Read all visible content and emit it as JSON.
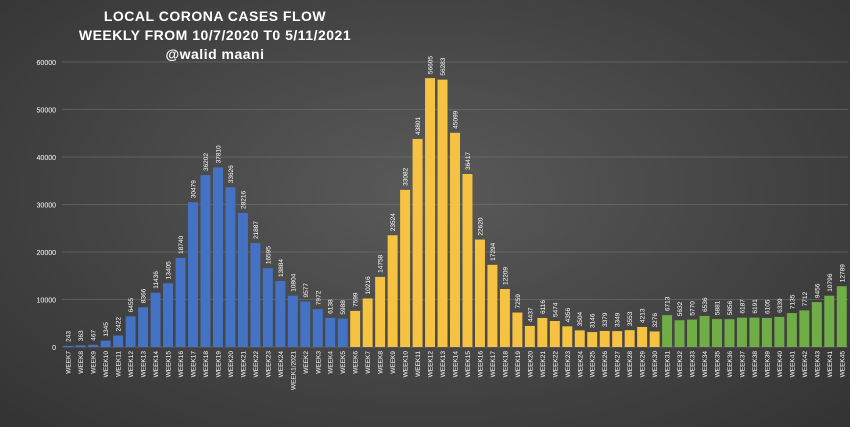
{
  "chart_data": {
    "type": "bar",
    "title": [
      "LOCAL CORONA CASES FLOW",
      "WEEKLY FROM 10/7/2020 T0 5/11/2021",
      "@walid maani"
    ],
    "xlabel": "",
    "ylabel": "",
    "ylim": [
      0,
      60000
    ],
    "yticks": [
      0,
      10000,
      20000,
      30000,
      40000,
      50000,
      60000
    ],
    "grid": true,
    "legend": "none",
    "colors": {
      "blue": "#4472c4",
      "gold": "#f5c242",
      "green": "#70ad47"
    },
    "categories": [
      "WEEK7",
      "WEEK8",
      "WEEK9",
      "WEEK10",
      "WEEK11",
      "WEEK12",
      "WEEK13",
      "WEEK14",
      "WEEK15",
      "WEEK16",
      "WEEK17",
      "WEEK18",
      "WEEK19",
      "WEEK20",
      "WEEK21",
      "WEEK22",
      "WEEK23",
      "WEEK24",
      "WEEK1/2021",
      "WEEK2",
      "WEEK3",
      "WEEK4",
      "WEEK5",
      "WEEK6",
      "WEEK7",
      "WEEK8",
      "WEEK9",
      "WEEK10",
      "WEEK11",
      "WEEK12",
      "WEEK13",
      "WEEK14",
      "WEEK15",
      "WEEK16",
      "WEEK17",
      "WEEK18",
      "WEEK19",
      "WEEK20",
      "WEEK21",
      "WEEK22",
      "WEEK23",
      "WEEK24",
      "WEEK25",
      "WEEK26",
      "WEEK27",
      "WEEK28",
      "WEEK29",
      "WEEK30",
      "WEEK31",
      "WEEK32",
      "WEEK33",
      "WEEK34",
      "WEEK35",
      "WEEK36",
      "WEEK37",
      "WEEK38",
      "WEEK39",
      "WEEK40",
      "WEEK41",
      "WEEK42",
      "WEEK43",
      "WEEK41",
      "WEEK45"
    ],
    "values": [
      243,
      363,
      467,
      1345,
      2422,
      6455,
      8366,
      11436,
      13405,
      18740,
      30479,
      36202,
      37810,
      33626,
      28216,
      21887,
      16595,
      13884,
      10804,
      9577,
      7972,
      6138,
      5988,
      7599,
      10216,
      14758,
      23524,
      33082,
      43801,
      56605,
      56283,
      45099,
      36417,
      22620,
      17294,
      12209,
      7259,
      4437,
      6116,
      5474,
      4356,
      3504,
      3146,
      3379,
      3349,
      3553,
      4213,
      3276,
      6713,
      5632,
      5770,
      6536,
      5881,
      5856,
      6187,
      6191,
      6105,
      6339,
      7135,
      7712,
      9456,
      10796,
      12789
    ],
    "bar_colors": [
      "blue",
      "blue",
      "blue",
      "blue",
      "blue",
      "blue",
      "blue",
      "blue",
      "blue",
      "blue",
      "blue",
      "blue",
      "blue",
      "blue",
      "blue",
      "blue",
      "blue",
      "blue",
      "blue",
      "blue",
      "blue",
      "blue",
      "blue",
      "gold",
      "gold",
      "gold",
      "gold",
      "gold",
      "gold",
      "gold",
      "gold",
      "gold",
      "gold",
      "gold",
      "gold",
      "gold",
      "gold",
      "gold",
      "gold",
      "gold",
      "gold",
      "gold",
      "gold",
      "gold",
      "gold",
      "gold",
      "gold",
      "gold",
      "green",
      "green",
      "green",
      "green",
      "green",
      "green",
      "green",
      "green",
      "green",
      "green",
      "green",
      "green",
      "green",
      "green",
      "green"
    ]
  }
}
